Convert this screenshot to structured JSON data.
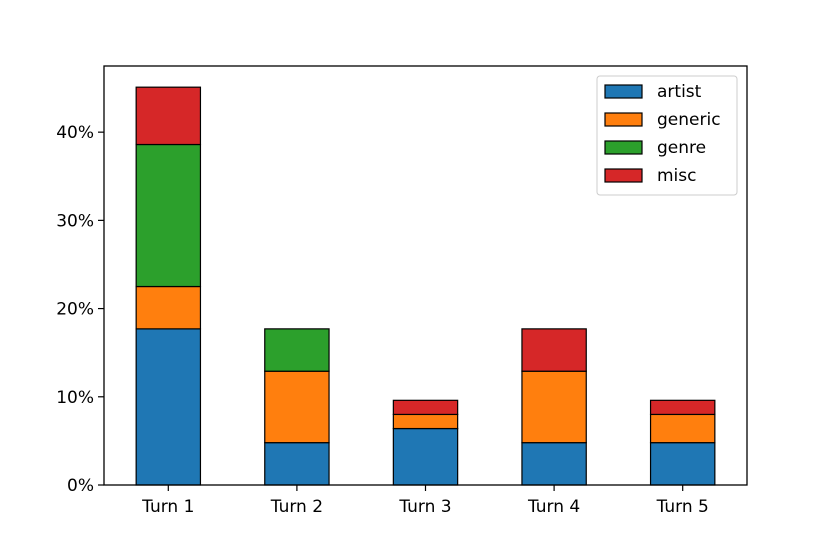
{
  "chart_data": {
    "type": "bar",
    "stacked": true,
    "categories": [
      "Turn 1",
      "Turn 2",
      "Turn 3",
      "Turn 4",
      "Turn 5"
    ],
    "series": [
      {
        "name": "artist",
        "color": "#1f77b4",
        "values": [
          17.7,
          4.8,
          6.4,
          4.8,
          4.8
        ]
      },
      {
        "name": "generic",
        "color": "#ff7f0e",
        "values": [
          4.8,
          8.1,
          1.6,
          8.1,
          3.2
        ]
      },
      {
        "name": "genre",
        "color": "#2ca02c",
        "values": [
          16.1,
          4.8,
          0,
          0,
          0
        ]
      },
      {
        "name": "misc",
        "color": "#d62728",
        "values": [
          6.5,
          0,
          1.6,
          4.8,
          1.6
        ]
      }
    ],
    "ylim": [
      0,
      47.5
    ],
    "yticks": [
      0,
      10,
      20,
      30,
      40
    ],
    "ytick_labels": [
      "0%",
      "10%",
      "20%",
      "30%",
      "40%"
    ],
    "title": "",
    "xlabel": "",
    "ylabel": "",
    "grid": false,
    "legend_position": "top-right"
  }
}
